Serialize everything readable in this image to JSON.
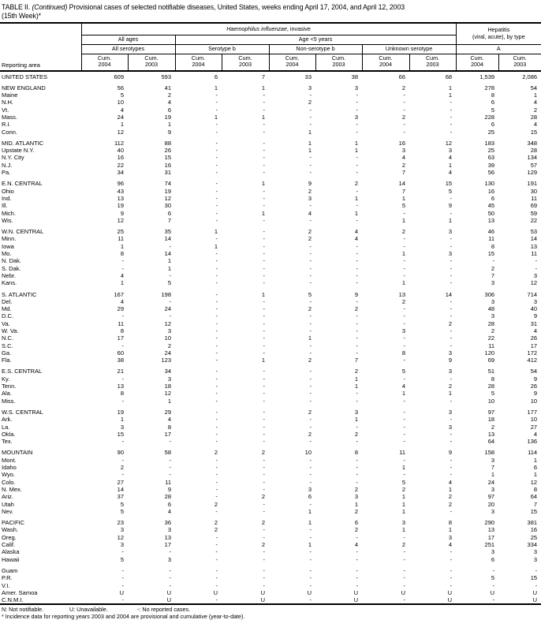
{
  "title": {
    "prefix": "TABLE II. ",
    "continued": "(Continued)",
    "rest": " Provisional cases of selected notifiable diseases, United States, weeks ending April 17, 2004, and April 12, 2003",
    "line2": "(15th Week)*"
  },
  "header": {
    "reporting_area": "Reporting area",
    "h_influenzae_italic": "Haemophilus influenzae",
    "h_influenzae_rest": ", invasive",
    "hepatitis_line1": "Hepatitis",
    "hepatitis_line2": "(viral, acute), by type",
    "all_ages": "All ages",
    "age_lt5": "Age <5 years",
    "all_serotypes": "All serotypes",
    "serotype_b": "Serotype b",
    "non_serotype_b": "Non-serotype b",
    "unknown_serotype": "Unknown serotype",
    "hep_a": "A",
    "cum_label": "Cum.",
    "years": [
      "2004",
      "2003",
      "2004",
      "2003",
      "2004",
      "2003",
      "2004",
      "2003",
      "2004",
      "2003"
    ]
  },
  "rows": [
    {
      "area": "UNITED STATES",
      "gap": false,
      "values": [
        "609",
        "593",
        "6",
        "7",
        "33",
        "38",
        "66",
        "68",
        "1,539",
        "2,086"
      ]
    },
    {
      "area": "NEW ENGLAND",
      "gap": true,
      "values": [
        "56",
        "41",
        "1",
        "1",
        "3",
        "3",
        "2",
        "1",
        "278",
        "54"
      ]
    },
    {
      "area": "Maine",
      "gap": false,
      "values": [
        "5",
        "2",
        "-",
        "-",
        "-",
        "-",
        "-",
        "1",
        "8",
        "1"
      ]
    },
    {
      "area": "N.H.",
      "gap": false,
      "values": [
        "10",
        "4",
        "-",
        "-",
        "2",
        "-",
        "-",
        "-",
        "6",
        "4"
      ]
    },
    {
      "area": "Vt.",
      "gap": false,
      "values": [
        "4",
        "6",
        "-",
        "-",
        "-",
        "-",
        "-",
        "-",
        "5",
        "2"
      ]
    },
    {
      "area": "Mass.",
      "gap": false,
      "values": [
        "24",
        "19",
        "1",
        "1",
        "-",
        "3",
        "2",
        "-",
        "228",
        "28"
      ]
    },
    {
      "area": "R.I.",
      "gap": false,
      "values": [
        "1",
        "1",
        "-",
        "-",
        "-",
        "-",
        "-",
        "-",
        "6",
        "4"
      ]
    },
    {
      "area": "Conn.",
      "gap": false,
      "values": [
        "12",
        "9",
        "-",
        "-",
        "1",
        "-",
        "-",
        "-",
        "25",
        "15"
      ]
    },
    {
      "area": "MID. ATLANTIC",
      "gap": true,
      "values": [
        "112",
        "88",
        "-",
        "-",
        "1",
        "1",
        "16",
        "12",
        "183",
        "348"
      ]
    },
    {
      "area": "Upstate N.Y.",
      "gap": false,
      "values": [
        "40",
        "26",
        "-",
        "-",
        "1",
        "1",
        "3",
        "3",
        "25",
        "28"
      ]
    },
    {
      "area": "N.Y. City",
      "gap": false,
      "values": [
        "16",
        "15",
        "-",
        "-",
        "-",
        "-",
        "4",
        "4",
        "63",
        "134"
      ]
    },
    {
      "area": "N.J.",
      "gap": false,
      "values": [
        "22",
        "16",
        "-",
        "-",
        "-",
        "-",
        "2",
        "1",
        "39",
        "57"
      ]
    },
    {
      "area": "Pa.",
      "gap": false,
      "values": [
        "34",
        "31",
        "-",
        "-",
        "-",
        "-",
        "7",
        "4",
        "56",
        "129"
      ]
    },
    {
      "area": "E.N. CENTRAL",
      "gap": true,
      "values": [
        "96",
        "74",
        "-",
        "1",
        "9",
        "2",
        "14",
        "15",
        "130",
        "191"
      ]
    },
    {
      "area": "Ohio",
      "gap": false,
      "values": [
        "43",
        "19",
        "-",
        "-",
        "2",
        "-",
        "7",
        "5",
        "16",
        "30"
      ]
    },
    {
      "area": "Ind.",
      "gap": false,
      "values": [
        "13",
        "12",
        "-",
        "-",
        "3",
        "1",
        "1",
        "-",
        "6",
        "11"
      ]
    },
    {
      "area": "Ill.",
      "gap": false,
      "values": [
        "19",
        "30",
        "-",
        "-",
        "-",
        "-",
        "5",
        "9",
        "45",
        "69"
      ]
    },
    {
      "area": "Mich.",
      "gap": false,
      "values": [
        "9",
        "6",
        "-",
        "1",
        "4",
        "1",
        "-",
        "-",
        "50",
        "59"
      ]
    },
    {
      "area": "Wis.",
      "gap": false,
      "values": [
        "12",
        "7",
        "-",
        "-",
        "-",
        "-",
        "1",
        "1",
        "13",
        "22"
      ]
    },
    {
      "area": "W.N. CENTRAL",
      "gap": true,
      "values": [
        "25",
        "35",
        "1",
        "-",
        "2",
        "4",
        "2",
        "3",
        "46",
        "53"
      ]
    },
    {
      "area": "Minn.",
      "gap": false,
      "values": [
        "11",
        "14",
        "-",
        "-",
        "2",
        "4",
        "-",
        "-",
        "11",
        "14"
      ]
    },
    {
      "area": "Iowa",
      "gap": false,
      "values": [
        "1",
        "-",
        "1",
        "-",
        "-",
        "-",
        "-",
        "-",
        "8",
        "13"
      ]
    },
    {
      "area": "Mo.",
      "gap": false,
      "values": [
        "8",
        "14",
        "-",
        "-",
        "-",
        "-",
        "1",
        "3",
        "15",
        "11"
      ]
    },
    {
      "area": "N. Dak.",
      "gap": false,
      "values": [
        "-",
        "1",
        "-",
        "-",
        "-",
        "-",
        "-",
        "-",
        "-",
        "-"
      ]
    },
    {
      "area": "S. Dak.",
      "gap": false,
      "values": [
        "-",
        "1",
        "-",
        "-",
        "-",
        "-",
        "-",
        "-",
        "2",
        "-"
      ]
    },
    {
      "area": "Nebr.",
      "gap": false,
      "values": [
        "4",
        "-",
        "-",
        "-",
        "-",
        "-",
        "-",
        "-",
        "7",
        "3"
      ]
    },
    {
      "area": "Kans.",
      "gap": false,
      "values": [
        "1",
        "5",
        "-",
        "-",
        "-",
        "-",
        "1",
        "-",
        "3",
        "12"
      ]
    },
    {
      "area": "S. ATLANTIC",
      "gap": true,
      "values": [
        "167",
        "198",
        "-",
        "1",
        "5",
        "9",
        "13",
        "14",
        "306",
        "714"
      ]
    },
    {
      "area": "Del.",
      "gap": false,
      "values": [
        "4",
        "-",
        "-",
        "-",
        "-",
        "-",
        "2",
        "-",
        "3",
        "3"
      ]
    },
    {
      "area": "Md.",
      "gap": false,
      "values": [
        "29",
        "24",
        "-",
        "-",
        "2",
        "2",
        "-",
        "-",
        "48",
        "40"
      ]
    },
    {
      "area": "D.C.",
      "gap": false,
      "values": [
        "-",
        "-",
        "-",
        "-",
        "-",
        "-",
        "-",
        "-",
        "3",
        "9"
      ]
    },
    {
      "area": "Va.",
      "gap": false,
      "values": [
        "11",
        "12",
        "-",
        "-",
        "-",
        "-",
        "-",
        "2",
        "28",
        "31"
      ]
    },
    {
      "area": "W. Va.",
      "gap": false,
      "values": [
        "8",
        "3",
        "-",
        "-",
        "-",
        "-",
        "3",
        "-",
        "2",
        "4"
      ]
    },
    {
      "area": "N.C.",
      "gap": false,
      "values": [
        "17",
        "10",
        "-",
        "-",
        "1",
        "-",
        "-",
        "-",
        "22",
        "26"
      ]
    },
    {
      "area": "S.C.",
      "gap": false,
      "values": [
        "-",
        "2",
        "-",
        "-",
        "-",
        "-",
        "-",
        "-",
        "11",
        "17"
      ]
    },
    {
      "area": "Ga.",
      "gap": false,
      "values": [
        "60",
        "24",
        "-",
        "-",
        "-",
        "-",
        "8",
        "3",
        "120",
        "172"
      ]
    },
    {
      "area": "Fla.",
      "gap": false,
      "values": [
        "38",
        "123",
        "-",
        "1",
        "2",
        "7",
        "-",
        "9",
        "69",
        "412"
      ]
    },
    {
      "area": "E.S. CENTRAL",
      "gap": true,
      "values": [
        "21",
        "34",
        "-",
        "-",
        "-",
        "2",
        "5",
        "3",
        "51",
        "54"
      ]
    },
    {
      "area": "Ky.",
      "gap": false,
      "values": [
        "-",
        "3",
        "-",
        "-",
        "-",
        "1",
        "-",
        "-",
        "8",
        "9"
      ]
    },
    {
      "area": "Tenn.",
      "gap": false,
      "values": [
        "13",
        "18",
        "-",
        "-",
        "-",
        "1",
        "4",
        "2",
        "28",
        "26"
      ]
    },
    {
      "area": "Ala.",
      "gap": false,
      "values": [
        "8",
        "12",
        "-",
        "-",
        "-",
        "-",
        "1",
        "1",
        "5",
        "9"
      ]
    },
    {
      "area": "Miss.",
      "gap": false,
      "values": [
        "-",
        "1",
        "-",
        "-",
        "-",
        "-",
        "-",
        "-",
        "10",
        "10"
      ]
    },
    {
      "area": "W.S. CENTRAL",
      "gap": true,
      "values": [
        "19",
        "29",
        "-",
        "-",
        "2",
        "3",
        "-",
        "3",
        "97",
        "177"
      ]
    },
    {
      "area": "Ark.",
      "gap": false,
      "values": [
        "1",
        "4",
        "-",
        "-",
        "-",
        "1",
        "-",
        "-",
        "18",
        "10"
      ]
    },
    {
      "area": "La.",
      "gap": false,
      "values": [
        "3",
        "8",
        "-",
        "-",
        "-",
        "-",
        "-",
        "3",
        "2",
        "27"
      ]
    },
    {
      "area": "Okla.",
      "gap": false,
      "values": [
        "15",
        "17",
        "-",
        "-",
        "2",
        "2",
        "-",
        "-",
        "13",
        "4"
      ]
    },
    {
      "area": "Tex.",
      "gap": false,
      "values": [
        "-",
        "-",
        "-",
        "-",
        "-",
        "-",
        "-",
        "-",
        "64",
        "136"
      ]
    },
    {
      "area": "MOUNTAIN",
      "gap": true,
      "values": [
        "90",
        "58",
        "2",
        "2",
        "10",
        "8",
        "11",
        "9",
        "158",
        "114"
      ]
    },
    {
      "area": "Mont.",
      "gap": false,
      "values": [
        "-",
        "-",
        "-",
        "-",
        "-",
        "-",
        "-",
        "-",
        "3",
        "1"
      ]
    },
    {
      "area": "Idaho",
      "gap": false,
      "values": [
        "2",
        "-",
        "-",
        "-",
        "-",
        "-",
        "1",
        "-",
        "7",
        "6"
      ]
    },
    {
      "area": "Wyo.",
      "gap": false,
      "values": [
        "-",
        "-",
        "-",
        "-",
        "-",
        "-",
        "-",
        "-",
        "1",
        "1"
      ]
    },
    {
      "area": "Colo.",
      "gap": false,
      "values": [
        "27",
        "11",
        "-",
        "-",
        "-",
        "-",
        "5",
        "4",
        "24",
        "12"
      ]
    },
    {
      "area": "N. Mex.",
      "gap": false,
      "values": [
        "14",
        "9",
        "-",
        "-",
        "3",
        "2",
        "2",
        "1",
        "3",
        "8"
      ]
    },
    {
      "area": "Ariz.",
      "gap": false,
      "values": [
        "37",
        "28",
        "-",
        "2",
        "6",
        "3",
        "1",
        "2",
        "97",
        "64"
      ]
    },
    {
      "area": "Utah",
      "gap": false,
      "values": [
        "5",
        "6",
        "2",
        "-",
        "-",
        "1",
        "1",
        "2",
        "20",
        "7"
      ]
    },
    {
      "area": "Nev.",
      "gap": false,
      "values": [
        "5",
        "4",
        "-",
        "-",
        "1",
        "2",
        "1",
        "-",
        "3",
        "15"
      ]
    },
    {
      "area": "PACIFIC",
      "gap": true,
      "values": [
        "23",
        "36",
        "2",
        "2",
        "1",
        "6",
        "3",
        "8",
        "290",
        "381"
      ]
    },
    {
      "area": "Wash.",
      "gap": false,
      "values": [
        "3",
        "3",
        "2",
        "-",
        "-",
        "2",
        "1",
        "1",
        "13",
        "16"
      ]
    },
    {
      "area": "Oreg.",
      "gap": false,
      "values": [
        "12",
        "13",
        "-",
        "-",
        "-",
        "-",
        "-",
        "3",
        "17",
        "25"
      ]
    },
    {
      "area": "Calif.",
      "gap": false,
      "values": [
        "3",
        "17",
        "-",
        "2",
        "1",
        "4",
        "2",
        "4",
        "251",
        "334"
      ]
    },
    {
      "area": "Alaska",
      "gap": false,
      "values": [
        "-",
        "-",
        "-",
        "-",
        "-",
        "-",
        "-",
        "-",
        "3",
        "3"
      ]
    },
    {
      "area": "Hawaii",
      "gap": false,
      "values": [
        "5",
        "3",
        "-",
        "-",
        "-",
        "-",
        "-",
        "-",
        "6",
        "3"
      ]
    },
    {
      "area": "Guam",
      "gap": true,
      "values": [
        "-",
        "-",
        "-",
        "-",
        "-",
        "-",
        "-",
        "-",
        "-",
        "-"
      ]
    },
    {
      "area": "P.R.",
      "gap": false,
      "values": [
        "-",
        "-",
        "-",
        "-",
        "-",
        "-",
        "-",
        "-",
        "5",
        "15"
      ]
    },
    {
      "area": "V.I.",
      "gap": false,
      "values": [
        "-",
        "-",
        "-",
        "-",
        "-",
        "-",
        "-",
        "-",
        "-",
        "-"
      ]
    },
    {
      "area": "Amer. Samoa",
      "gap": false,
      "values": [
        "U",
        "U",
        "U",
        "U",
        "U",
        "U",
        "U",
        "U",
        "U",
        "U"
      ]
    },
    {
      "area": "C.N.M.I.",
      "gap": false,
      "values": [
        "-",
        "U",
        "-",
        "U",
        "-",
        "U",
        "-",
        "U",
        "-",
        "U"
      ]
    }
  ],
  "footnotes": {
    "legend": [
      "N: Not notifiable.",
      "U: Unavailable.",
      "-: No reported cases."
    ],
    "note": "* Incidence data for reporting years 2003 and 2004 are provisional and cumulative (year-to-date)."
  }
}
